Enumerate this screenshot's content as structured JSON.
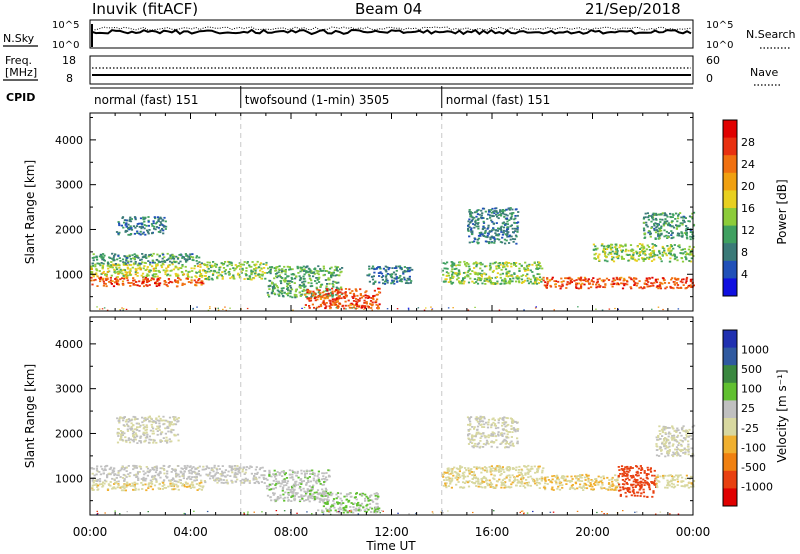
{
  "header": {
    "station": "Inuvik (fitACF)",
    "beam": "Beam 04",
    "date": "21/Sep/2018"
  },
  "noise_panel": {
    "left_label": "N.Sky",
    "right_label": "N.Search",
    "left_ticks": [
      "10^5",
      "10^0"
    ],
    "right_ticks": [
      "10^5",
      "10^0"
    ]
  },
  "freq_panel": {
    "left_label_1": "Freq.",
    "left_label_2": "[MHz]",
    "right_label": "Nave",
    "left_ticks": [
      "18",
      "8"
    ],
    "right_ticks": [
      "60",
      "0"
    ]
  },
  "cpid": {
    "label": "CPID",
    "segments": [
      {
        "label": "normal (fast) 151",
        "start_hour": 0,
        "end_hour": 6
      },
      {
        "label": "twofsound (1-min) 3505",
        "start_hour": 6,
        "end_hour": 14
      },
      {
        "label": "normal (fast) 151",
        "start_hour": 14,
        "end_hour": 24
      }
    ]
  },
  "x_axis": {
    "title": "Time UT",
    "ticks": [
      "00:00",
      "04:00",
      "08:00",
      "12:00",
      "16:00",
      "20:00",
      "00:00"
    ],
    "range_hours": [
      0,
      24
    ]
  },
  "power_panel": {
    "ylabel": "Slant Range [km]",
    "yticks": [
      "1000",
      "2000",
      "3000",
      "4000"
    ],
    "colorbar_label": "Power [dB]",
    "colorbar_ticks": [
      "4",
      "8",
      "12",
      "16",
      "20",
      "24",
      "28"
    ]
  },
  "velocity_panel": {
    "ylabel": "Slant Range [km]",
    "yticks": [
      "1000",
      "2000",
      "3000",
      "4000"
    ],
    "colorbar_label": "Velocity [m s⁻¹]",
    "colorbar_ticks": [
      "1000",
      "500",
      "100",
      "25",
      "-25",
      "-100",
      "-500",
      "-1000"
    ]
  },
  "colors": {
    "power_scale": [
      "#1010e0",
      "#2050b8",
      "#3a7a78",
      "#3fa060",
      "#8ccc3a",
      "#e8d020",
      "#f0a010",
      "#f07010",
      "#e83010",
      "#e00000"
    ],
    "velocity_scale": [
      "#2030b0",
      "#305aa0",
      "#3a8840",
      "#60c030",
      "#c0c0c0",
      "#d8d8a0",
      "#f0b030",
      "#f08010",
      "#e84010",
      "#e00000"
    ]
  },
  "chart_data": [
    {
      "type": "heatmap",
      "title": "Power",
      "xlabel": "Time UT",
      "ylabel": "Slant Range [km]",
      "xlim": [
        0,
        24
      ],
      "ylim": [
        180,
        4600
      ],
      "colorbar": {
        "label": "Power [dB]",
        "range": [
          0,
          32
        ]
      },
      "scatter_regions": [
        {
          "t": [
            0.0,
            4.5
          ],
          "r": [
            750,
            950
          ],
          "value_db": 26
        },
        {
          "t": [
            0.0,
            4.5
          ],
          "r": [
            950,
            1250
          ],
          "value_db": 16
        },
        {
          "t": [
            0.0,
            4.5
          ],
          "r": [
            1250,
            1500
          ],
          "value_db": 10
        },
        {
          "t": [
            1.0,
            3.0
          ],
          "r": [
            1900,
            2300
          ],
          "value_db": 8
        },
        {
          "t": [
            4.5,
            7.0
          ],
          "r": [
            900,
            1300
          ],
          "value_db": 14
        },
        {
          "t": [
            7.0,
            10.0
          ],
          "r": [
            500,
            1200
          ],
          "value_db": 12
        },
        {
          "t": [
            8.5,
            11.5
          ],
          "r": [
            250,
            700
          ],
          "value_db": 26
        },
        {
          "t": [
            11.0,
            12.8
          ],
          "r": [
            800,
            1200
          ],
          "value_db": 8
        },
        {
          "t": [
            14.0,
            18.0
          ],
          "r": [
            800,
            1300
          ],
          "value_db": 14
        },
        {
          "t": [
            15.0,
            17.0
          ],
          "r": [
            1700,
            2500
          ],
          "value_db": 8
        },
        {
          "t": [
            18.0,
            24.0
          ],
          "r": [
            700,
            950
          ],
          "value_db": 26
        },
        {
          "t": [
            20.0,
            24.0
          ],
          "r": [
            1300,
            1700
          ],
          "value_db": 14
        },
        {
          "t": [
            22.0,
            24.0
          ],
          "r": [
            1800,
            2400
          ],
          "value_db": 10
        }
      ]
    },
    {
      "type": "heatmap",
      "title": "Velocity",
      "xlabel": "Time UT",
      "ylabel": "Slant Range [km]",
      "xlim": [
        0,
        24
      ],
      "ylim": [
        180,
        4600
      ],
      "colorbar": {
        "label": "Velocity [m s-1]",
        "range": [
          -1000,
          1000
        ]
      },
      "scatter_regions": [
        {
          "t": [
            0.0,
            4.5
          ],
          "r": [
            750,
            950
          ],
          "value_ms": -150
        },
        {
          "t": [
            0.0,
            4.5
          ],
          "r": [
            950,
            1300
          ],
          "value_ms": 60
        },
        {
          "t": [
            1.0,
            3.5
          ],
          "r": [
            1800,
            2400
          ],
          "value_ms": 0
        },
        {
          "t": [
            4.5,
            7.0
          ],
          "r": [
            900,
            1300
          ],
          "value_ms": 60
        },
        {
          "t": [
            7.0,
            9.5
          ],
          "r": [
            500,
            1200
          ],
          "value_ms": 150
        },
        {
          "t": [
            9.0,
            11.5
          ],
          "r": [
            250,
            700
          ],
          "value_ms": 200
        },
        {
          "t": [
            14.0,
            18.0
          ],
          "r": [
            800,
            1300
          ],
          "value_ms": -150
        },
        {
          "t": [
            15.0,
            17.0
          ],
          "r": [
            1700,
            2400
          ],
          "value_ms": 0
        },
        {
          "t": [
            18.0,
            21.0
          ],
          "r": [
            750,
            1100
          ],
          "value_ms": -200
        },
        {
          "t": [
            21.0,
            22.5
          ],
          "r": [
            600,
            1300
          ],
          "value_ms": -700
        },
        {
          "t": [
            22.5,
            24.0
          ],
          "r": [
            800,
            1100
          ],
          "value_ms": -150
        },
        {
          "t": [
            22.5,
            24.0
          ],
          "r": [
            1500,
            2200
          ],
          "value_ms": 0
        }
      ]
    }
  ]
}
